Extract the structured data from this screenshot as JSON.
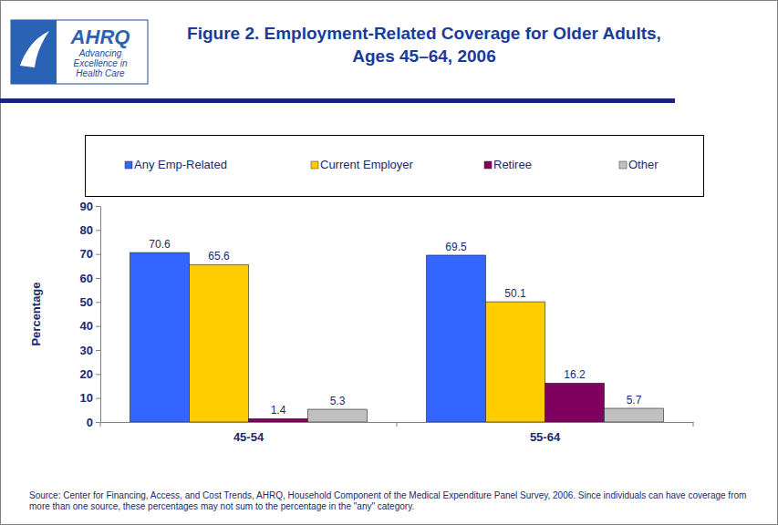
{
  "chart_data": {
    "type": "bar",
    "title": "Figure 2. Employment-Related Coverage for Older Adults, Ages 45–64, 2006",
    "y_label": "Percentage",
    "categories": [
      "45-54",
      "55-64"
    ],
    "series": [
      {
        "name": "Any Emp-Related",
        "color": "#3366ff",
        "values": [
          70.6,
          69.5
        ]
      },
      {
        "name": "Current Employer",
        "color": "#ffcc00",
        "values": [
          65.6,
          50.1
        ]
      },
      {
        "name": "Retiree",
        "color": "#800060",
        "values": [
          1.4,
          16.2
        ]
      },
      {
        "name": "Other",
        "color": "#c0c0c0",
        "values": [
          5.3,
          5.7
        ]
      }
    ],
    "ylim": [
      0,
      90
    ],
    "yticks": [
      0,
      10,
      20,
      30,
      40,
      50,
      60,
      70,
      80,
      90
    ],
    "grid": false,
    "legend": "top",
    "data_labels": true,
    "annotations": [
      "AHRQ",
      "Advancing",
      "Excellence in",
      "Health Care",
      "Source: Center for Financing, Access, and Cost Trends, AHRQ, Household Component of the Medical Expenditure Panel Survey, 2006. Since individuals can have coverage from more than one source, these percentages may not sum to the percentage in the \"any\" category."
    ]
  }
}
